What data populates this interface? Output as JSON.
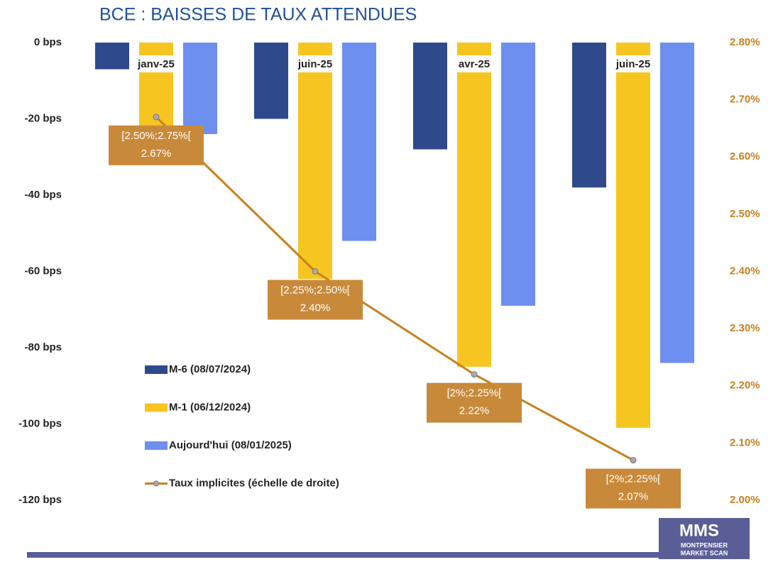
{
  "chart_data": {
    "type": "bar",
    "title": "BCE : BAISSES DE TAUX ATTENDUES",
    "categories": [
      "janv-25",
      "juin-25",
      "avr-25",
      "juin-25"
    ],
    "series": [
      {
        "name": "M-6 (08/07/2024)",
        "color": "#2f4a8c",
        "values": [
          -7,
          -20,
          -28,
          -38
        ]
      },
      {
        "name": "M-1 (06/12/2024)",
        "color": "#f7c520",
        "values": [
          -27,
          -62,
          -85,
          -101
        ]
      },
      {
        "name": "Aujourd'hui (08/01/2025)",
        "color": "#6d8ff0",
        "values": [
          -24,
          -52,
          -69,
          -84
        ]
      },
      {
        "name": "Taux implicites (échelle de droite)",
        "color": "#c8801c",
        "type": "line",
        "axis": "y2",
        "values": [
          2.67,
          2.4,
          2.22,
          2.07
        ],
        "value_labels": [
          "2.67%",
          "2.40%",
          "2.22%",
          "2.07%"
        ],
        "annotations": [
          "[2.50%;2.75%[",
          "[2.25%;2.50%[",
          "[2%;2.25%[",
          "[2%;2.25%["
        ]
      }
    ],
    "ylim": [
      -120,
      0
    ],
    "yticks": [
      {
        "value": 0,
        "label": "0 bps"
      },
      {
        "value": -20,
        "label": "-20 bps"
      },
      {
        "value": -40,
        "label": "-40 bps"
      },
      {
        "value": -60,
        "label": "-60 bps"
      },
      {
        "value": -80,
        "label": "-80 bps"
      },
      {
        "value": -100,
        "label": "-100 bps"
      },
      {
        "value": -120,
        "label": "-120 bps"
      }
    ],
    "y2lim": [
      2.0,
      2.8
    ],
    "y2ticks": [
      {
        "value": 2.8,
        "label": "2.80%"
      },
      {
        "value": 2.7,
        "label": "2.70%"
      },
      {
        "value": 2.6,
        "label": "2.60%"
      },
      {
        "value": 2.5,
        "label": "2.50%"
      },
      {
        "value": 2.4,
        "label": "2.40%"
      },
      {
        "value": 2.3,
        "label": "2.30%"
      },
      {
        "value": 2.2,
        "label": "2.20%"
      },
      {
        "value": 2.1,
        "label": "2.10%"
      },
      {
        "value": 2.0,
        "label": "2.00%"
      }
    ],
    "grid": false,
    "legend": "lower left",
    "logo": {
      "title": "MMS",
      "line1": "MONTPENSIER",
      "line2": "MARKET SCAN"
    }
  }
}
